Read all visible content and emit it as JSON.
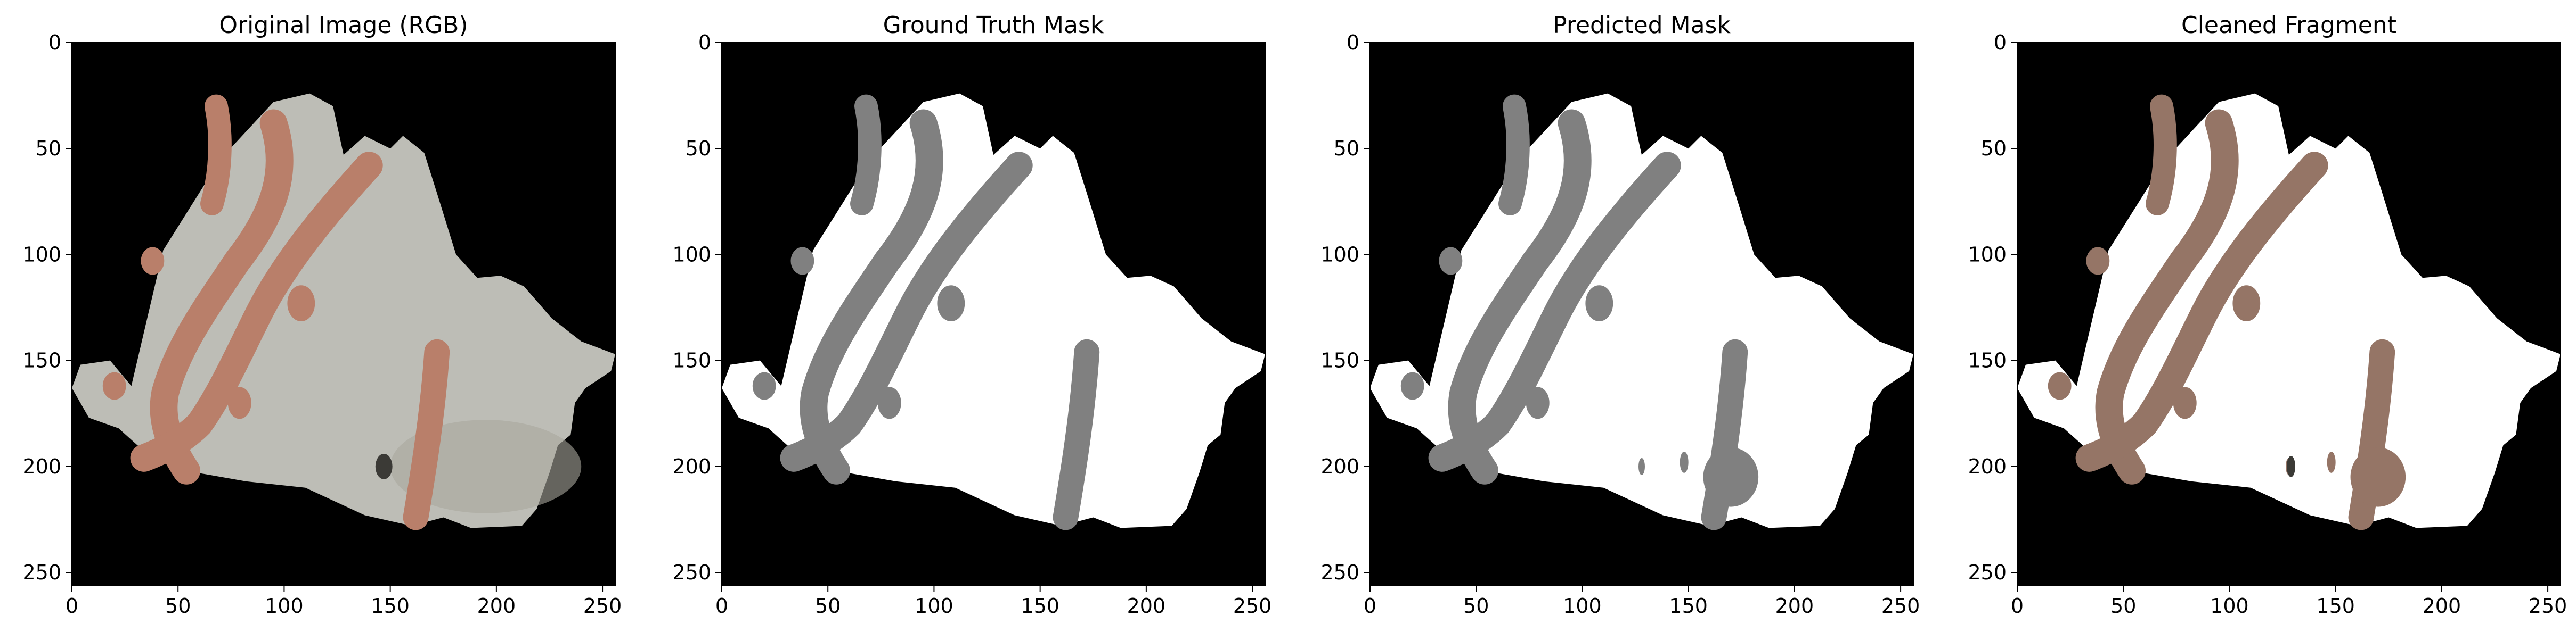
{
  "figure": {
    "axes_range": [
      0,
      256
    ],
    "ticks": [
      0,
      50,
      100,
      150,
      200,
      250
    ],
    "panels": [
      {
        "title": "Original Image (RGB)",
        "kind": "rgb"
      },
      {
        "title": "Ground Truth Mask",
        "kind": "gt_mask"
      },
      {
        "title": "Predicted Mask",
        "kind": "pred_mask"
      },
      {
        "title": "Cleaned Fragment",
        "kind": "cleaned"
      }
    ]
  },
  "colors": {
    "background": "#000000",
    "fragment_surface": "#bdbdb6",
    "fragment_surface_shadow": "#a9a69c",
    "paint_stroke": "#b97f6a",
    "paint_stroke_cleaned": "#957566",
    "mask_fragment": "#ffffff",
    "mask_paint": "#808080",
    "axis": "#000000"
  }
}
